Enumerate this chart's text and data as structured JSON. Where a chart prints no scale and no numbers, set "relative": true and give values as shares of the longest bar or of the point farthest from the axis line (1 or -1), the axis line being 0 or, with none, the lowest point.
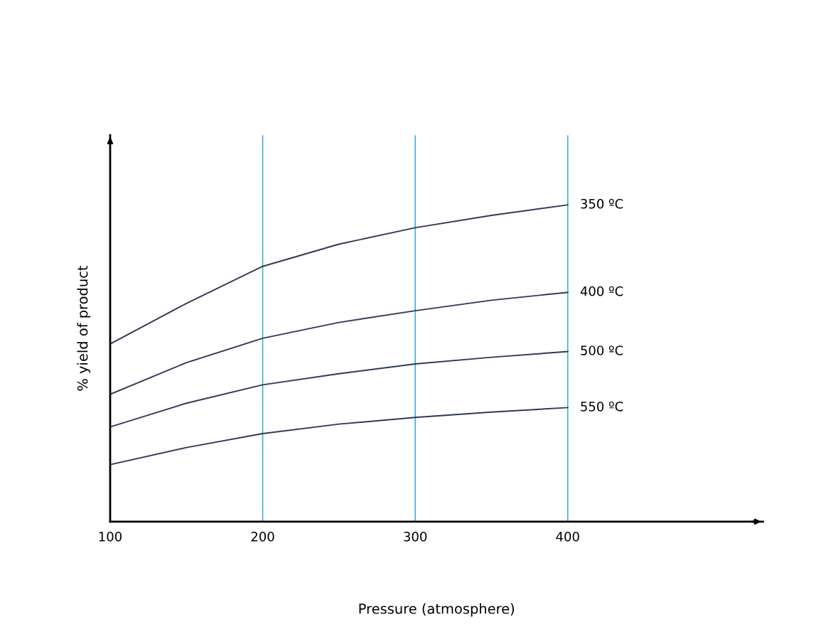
{
  "chart_data": {
    "type": "line",
    "xlabel": "Pressure (atmosphere)",
    "ylabel": "% yield of product",
    "relative": true,
    "x": [
      100,
      150,
      200,
      250,
      300,
      350,
      400
    ],
    "series": [
      {
        "name": "350 ºC",
        "color": "#2f3a56",
        "values": [
          0.561,
          0.689,
          0.806,
          0.876,
          0.928,
          0.967,
          1.0
        ]
      },
      {
        "name": "400 ºC",
        "color": "#2f3a56",
        "values": [
          0.402,
          0.502,
          0.579,
          0.629,
          0.666,
          0.699,
          0.724
        ]
      },
      {
        "name": "500 ºC",
        "color": "#2f3a56",
        "values": [
          0.299,
          0.374,
          0.432,
          0.467,
          0.498,
          0.519,
          0.537
        ]
      },
      {
        "name": "550 ºC",
        "color": "#2f3a56",
        "values": [
          0.18,
          0.234,
          0.278,
          0.308,
          0.329,
          0.346,
          0.36
        ]
      }
    ],
    "xlim": [
      100,
      528
    ],
    "xticks": [
      100,
      200,
      300,
      400
    ],
    "grid": true,
    "tick_labels": "x",
    "marker": "none",
    "line_style": "solid"
  }
}
